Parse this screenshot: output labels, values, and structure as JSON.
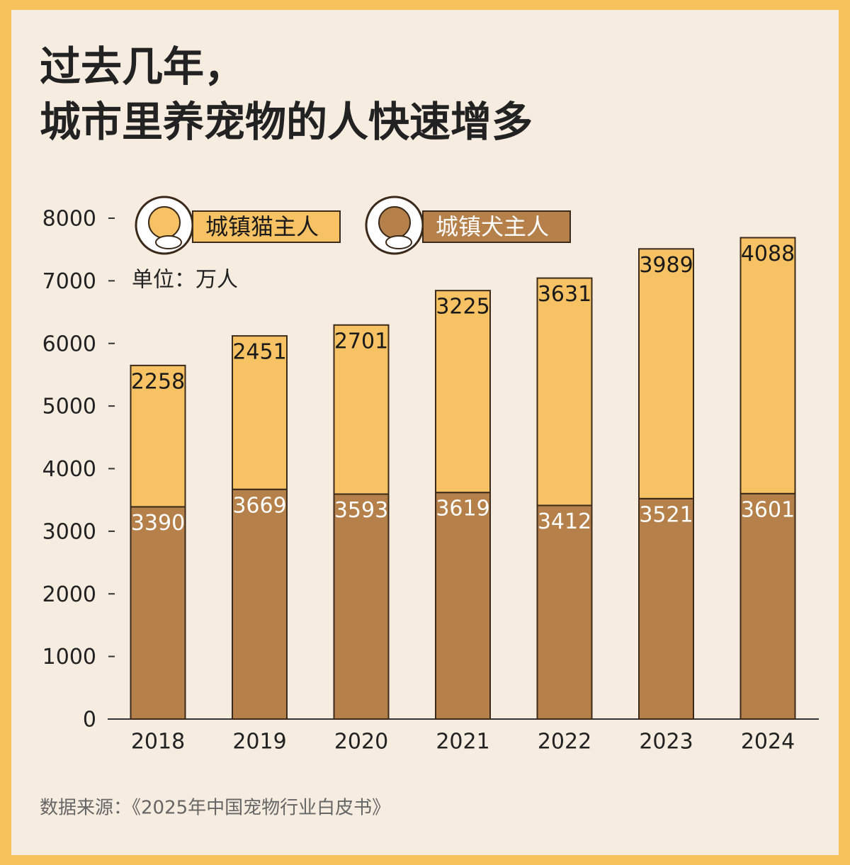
{
  "chart_data": {
    "type": "stacked_bar",
    "title": [
      "过去几年，",
      "城市里养宠物的人快速增多"
    ],
    "unit_label": "单位：万人",
    "source": "数据来源：《2025年中国宠物行业白皮书》",
    "categories": [
      "2018",
      "2019",
      "2020",
      "2021",
      "2022",
      "2023",
      "2024"
    ],
    "series": [
      {
        "name": "城镇犬主人",
        "color": "#b5804a",
        "values": [
          3390,
          3669,
          3593,
          3619,
          3412,
          3521,
          3601
        ]
      },
      {
        "name": "城镇猫主人",
        "color": "#f6c263",
        "values": [
          2258,
          2451,
          2701,
          3225,
          3631,
          3989,
          4088
        ]
      }
    ],
    "ylim": [
      0,
      8000
    ],
    "yticks": [
      0,
      1000,
      2000,
      3000,
      4000,
      5000,
      6000,
      7000,
      8000
    ]
  }
}
